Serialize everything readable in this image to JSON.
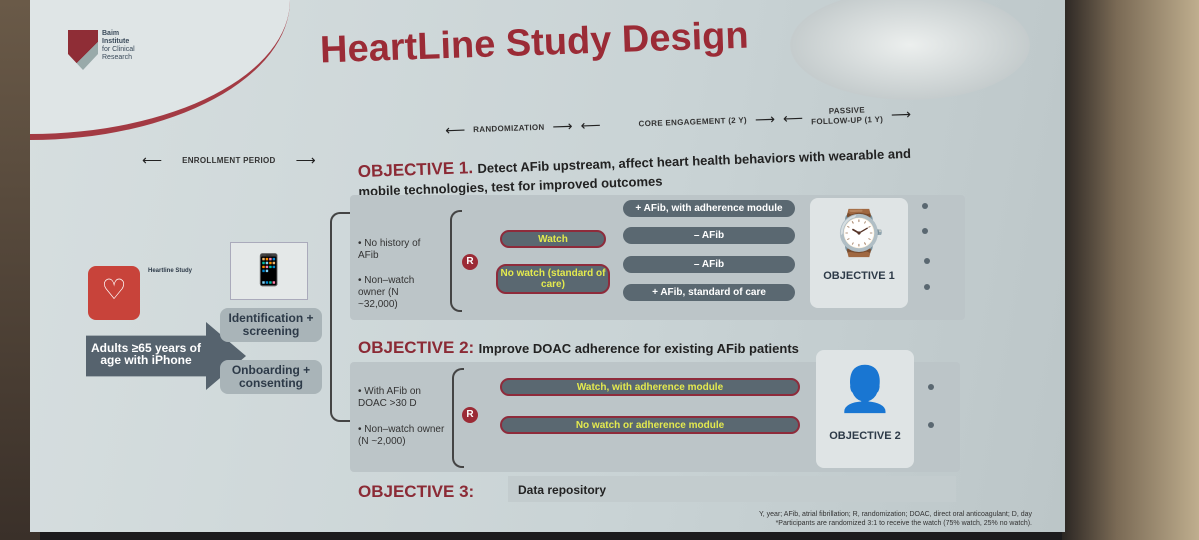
{
  "slide": {
    "title": "HeartLine Study Design",
    "logo_text": [
      "Baim",
      "Institute",
      "for Clinical",
      "Research"
    ],
    "phases": {
      "enrollment": "ENROLLMENT PERIOD",
      "randomization": "RANDOMIZATION",
      "core": "CORE ENGAGEMENT (2 Y)",
      "passive_1": "PASSIVE",
      "passive_2": "FOLLOW-UP (1 Y)"
    },
    "population": "Adults ≥65 years of age with iPhone",
    "app_card": {
      "name": "Heartline Study"
    },
    "steps": [
      "Identification + screening",
      "Onboarding + consenting"
    ],
    "objective1": {
      "label": "OBJECTIVE 1.",
      "desc": "Detect AFib upstream, affect heart health behaviors with wearable and mobile technologies, test for improved outcomes",
      "criteria": [
        "No history of AFib",
        "Non–watch owner (N ~32,000)"
      ],
      "r": "R",
      "arms": [
        "Watch",
        "No watch (standard of care)"
      ],
      "outcomes": [
        "+ AFib, with adherence module",
        "– AFib",
        "– AFib",
        "+ AFib, standard of care"
      ],
      "card": "OBJECTIVE 1"
    },
    "objective2": {
      "label": "OBJECTIVE 2:",
      "desc": "Improve DOAC adherence for existing AFib patients",
      "criteria": [
        "With AFib on DOAC >30 D",
        "Non–watch owner (N ~2,000)"
      ],
      "r": "R",
      "arms": [
        "Watch, with adherence module",
        "No watch or adherence module"
      ],
      "card": "OBJECTIVE 2"
    },
    "objective3": {
      "label": "OBJECTIVE 3:",
      "desc": "Data repository"
    },
    "footnotes": [
      "Y, year; AFib, atrial fibrillation; R, randomization; DOAC, direct oral anticoagulant; D, day",
      "*Participants are randomized 3:1 to receive the watch (75% watch, 25% no watch)."
    ],
    "colors": {
      "accent": "#9b2b36",
      "slate": "#5a6871",
      "highlight": "#e4ea4e"
    }
  }
}
